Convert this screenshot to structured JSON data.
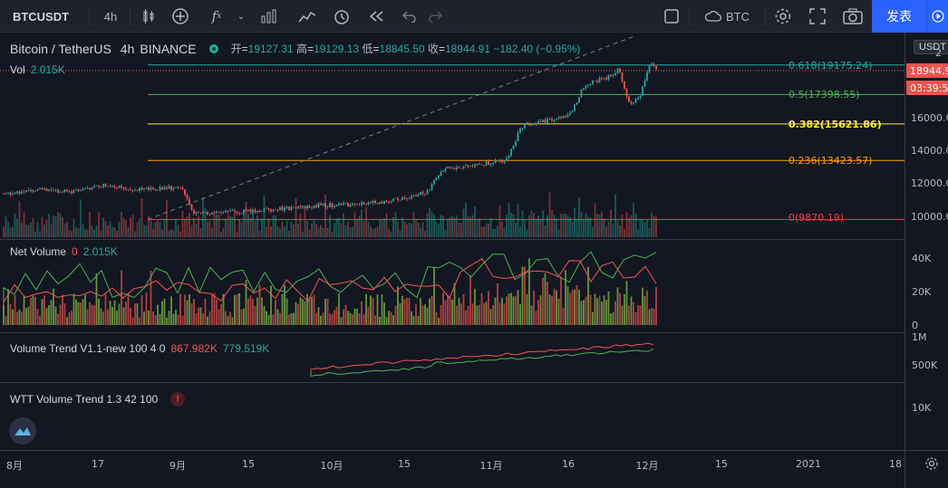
{
  "toolbar": {
    "symbol": "BTCUSDT",
    "interval": "4h",
    "compare_currency": "BTC",
    "publish_label": "发表"
  },
  "legend": {
    "title": "Bitcoin / TetherUS",
    "interval": "4h",
    "exchange": "BINANCE",
    "open_label": "开",
    "open": "19127.31",
    "high_label": "高",
    "high": "19129.13",
    "low_label": "低",
    "low": "18845.50",
    "close_label": "收",
    "close": "18944.91",
    "change": "−182.40 (−0.95%)",
    "vol_label": "Vol",
    "vol_value": "2.015K"
  },
  "indicators": {
    "net_volume": {
      "name": "Net Volume",
      "v1": "0",
      "v2": "2.015K"
    },
    "volume_trend": {
      "name": "Volume Trend V1.1-new 100 4 0",
      "v1": "867.982K",
      "v2": "779.519K"
    },
    "wtt": {
      "name": "WTT Volume Trend 1.3 42 100",
      "alert": "!"
    }
  },
  "fib_levels": [
    {
      "label": "0.618(19175.24)",
      "color": "#26a69a"
    },
    {
      "label": "0.5(17398.55)",
      "color": "#4caf50"
    },
    {
      "label": "0.382(15621.86)",
      "color": "#ffeb3b"
    },
    {
      "label": "0.236(13423.57)",
      "color": "#ff9800"
    },
    {
      "label": "0(9870.19)",
      "color": "#f23645"
    }
  ],
  "price_axis": {
    "currency": "USDT",
    "ticks": [
      "2",
      "16000.00",
      "14000.00",
      "12000.00",
      "10000.00"
    ],
    "last_price": "18944.9",
    "countdown": "03:39:5"
  },
  "net_volume_axis": [
    "40K",
    "20K",
    "0"
  ],
  "volume_trend_axis": [
    "1M",
    "500K"
  ],
  "wtt_axis": [
    "10K"
  ],
  "time_axis": [
    "8月",
    "17",
    "9月",
    "15",
    "10月",
    "15",
    "11月",
    "16",
    "12月",
    "15",
    "2021",
    "18"
  ],
  "colors": {
    "up": "#26a69a",
    "down": "#ef5350",
    "accent": "#2962ff"
  }
}
